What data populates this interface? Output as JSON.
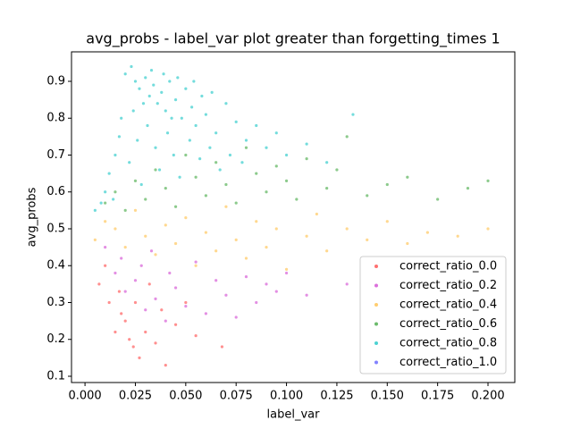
{
  "chart_data": {
    "type": "scatter",
    "title": "avg_probs - label_var plot greater than forgetting_times 1",
    "x_label": "label_var",
    "y_label": "avg_probs",
    "xlim": [
      -0.0067,
      0.2133
    ],
    "ylim": [
      0.083,
      0.98
    ],
    "xticks": [
      {
        "value": 0,
        "label": "0.000"
      },
      {
        "value": 0.025,
        "label": "0.025"
      },
      {
        "value": 0.05,
        "label": "0.050"
      },
      {
        "value": 0.075,
        "label": "0.075"
      },
      {
        "value": 0.1,
        "label": "0.100"
      },
      {
        "value": 0.125,
        "label": "0.125"
      },
      {
        "value": 0.15,
        "label": "0.150"
      },
      {
        "value": 0.175,
        "label": "0.175"
      },
      {
        "value": 0.2,
        "label": "0.200"
      }
    ],
    "yticks": [
      0.1,
      0.2,
      0.3,
      0.4,
      0.5,
      0.6,
      0.7,
      0.8,
      0.9
    ],
    "legend": "lower right",
    "series": [
      {
        "name": "correct_ratio_0.0",
        "color": "#ff3333",
        "x": [
          0.007,
          0.01,
          0.012,
          0.015,
          0.017,
          0.018,
          0.02,
          0.022,
          0.024,
          0.025,
          0.027,
          0.03,
          0.032,
          0.035,
          0.038,
          0.04,
          0.045,
          0.05,
          0.055,
          0.068
        ],
        "y": [
          0.35,
          0.4,
          0.3,
          0.22,
          0.33,
          0.27,
          0.25,
          0.2,
          0.18,
          0.3,
          0.15,
          0.22,
          0.35,
          0.19,
          0.28,
          0.13,
          0.24,
          0.3,
          0.21,
          0.18
        ]
      },
      {
        "name": "correct_ratio_0.2",
        "color": "#cc33cc",
        "x": [
          0.01,
          0.015,
          0.018,
          0.02,
          0.025,
          0.028,
          0.03,
          0.033,
          0.035,
          0.04,
          0.042,
          0.045,
          0.05,
          0.055,
          0.06,
          0.065,
          0.07,
          0.075,
          0.08,
          0.085,
          0.09,
          0.095,
          0.1,
          0.11,
          0.13
        ],
        "y": [
          0.45,
          0.38,
          0.42,
          0.33,
          0.36,
          0.4,
          0.28,
          0.44,
          0.31,
          0.25,
          0.38,
          0.34,
          0.29,
          0.41,
          0.27,
          0.36,
          0.32,
          0.26,
          0.37,
          0.3,
          0.35,
          0.33,
          0.38,
          0.32,
          0.35
        ]
      },
      {
        "name": "correct_ratio_0.4",
        "color": "#ffb833",
        "x": [
          0.005,
          0.01,
          0.015,
          0.02,
          0.025,
          0.03,
          0.035,
          0.04,
          0.045,
          0.05,
          0.055,
          0.06,
          0.065,
          0.07,
          0.075,
          0.08,
          0.085,
          0.09,
          0.095,
          0.1,
          0.11,
          0.115,
          0.12,
          0.13,
          0.14,
          0.15,
          0.16,
          0.17,
          0.185,
          0.2
        ],
        "y": [
          0.47,
          0.52,
          0.5,
          0.45,
          0.55,
          0.48,
          0.43,
          0.51,
          0.46,
          0.53,
          0.4,
          0.49,
          0.44,
          0.56,
          0.47,
          0.42,
          0.52,
          0.45,
          0.5,
          0.39,
          0.48,
          0.54,
          0.44,
          0.5,
          0.47,
          0.52,
          0.46,
          0.49,
          0.48,
          0.5
        ]
      },
      {
        "name": "correct_ratio_0.6",
        "color": "#2e9e2e",
        "x": [
          0.01,
          0.015,
          0.02,
          0.025,
          0.03,
          0.035,
          0.04,
          0.045,
          0.05,
          0.055,
          0.06,
          0.065,
          0.07,
          0.075,
          0.08,
          0.085,
          0.09,
          0.095,
          0.1,
          0.105,
          0.11,
          0.12,
          0.125,
          0.13,
          0.14,
          0.15,
          0.16,
          0.175,
          0.19,
          0.2
        ],
        "y": [
          0.57,
          0.6,
          0.55,
          0.63,
          0.58,
          0.66,
          0.61,
          0.56,
          0.7,
          0.64,
          0.59,
          0.68,
          0.62,
          0.57,
          0.72,
          0.65,
          0.6,
          0.67,
          0.63,
          0.58,
          0.69,
          0.61,
          0.66,
          0.75,
          0.59,
          0.62,
          0.64,
          0.58,
          0.61,
          0.63
        ]
      },
      {
        "name": "correct_ratio_0.8",
        "color": "#00bfbf",
        "x": [
          0.02,
          0.023,
          0.025,
          0.027,
          0.03,
          0.032,
          0.034,
          0.036,
          0.038,
          0.04,
          0.042,
          0.045,
          0.048,
          0.05,
          0.053,
          0.055,
          0.058,
          0.06,
          0.065,
          0.07,
          0.075,
          0.08,
          0.085,
          0.09,
          0.095,
          0.1,
          0.11,
          0.12,
          0.133,
          0.01,
          0.012,
          0.015,
          0.017,
          0.018,
          0.022,
          0.026,
          0.028,
          0.031,
          0.035,
          0.037,
          0.041,
          0.044,
          0.047,
          0.052,
          0.057,
          0.062,
          0.067,
          0.072,
          0.078,
          0.005,
          0.008,
          0.014,
          0.033,
          0.039,
          0.046,
          0.029,
          0.024,
          0.043,
          0.054,
          0.063
        ],
        "y": [
          0.92,
          0.94,
          0.9,
          0.88,
          0.91,
          0.86,
          0.89,
          0.84,
          0.87,
          0.82,
          0.9,
          0.85,
          0.8,
          0.88,
          0.83,
          0.78,
          0.86,
          0.81,
          0.76,
          0.84,
          0.79,
          0.74,
          0.78,
          0.72,
          0.76,
          0.7,
          0.73,
          0.68,
          0.81,
          0.6,
          0.65,
          0.7,
          0.75,
          0.8,
          0.68,
          0.74,
          0.62,
          0.78,
          0.72,
          0.66,
          0.76,
          0.7,
          0.64,
          0.74,
          0.69,
          0.72,
          0.66,
          0.7,
          0.68,
          0.55,
          0.57,
          0.58,
          0.93,
          0.92,
          0.91,
          0.84,
          0.82,
          0.8,
          0.9,
          0.87
        ]
      },
      {
        "name": "correct_ratio_1.0",
        "color": "#4d4dff",
        "x": [],
        "y": []
      }
    ]
  }
}
